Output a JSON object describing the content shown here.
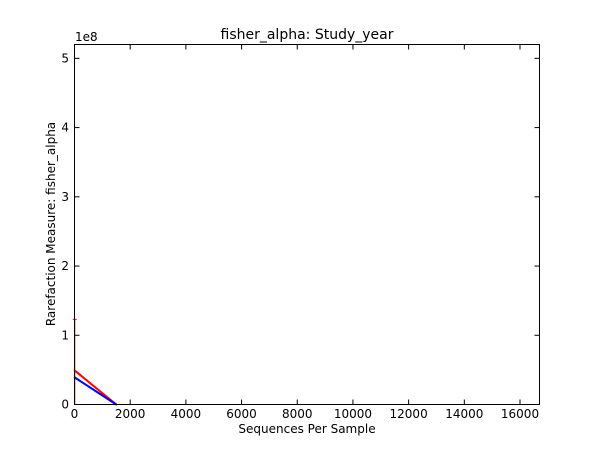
{
  "chart_data": {
    "type": "line",
    "title": "fisher_alpha: Study_year",
    "xlabel": "Sequences Per Sample",
    "ylabel": "Rarefaction Measure: fisher_alpha",
    "y_scale_label": "1e8",
    "xlim": [
      0,
      16700
    ],
    "ylim": [
      0,
      5.2
    ],
    "x_ticks": [
      0,
      2000,
      4000,
      6000,
      8000,
      10000,
      12000,
      14000,
      16000
    ],
    "y_ticks": [
      0,
      1,
      2,
      3,
      4,
      5
    ],
    "grid": false,
    "legend": "none",
    "series": [
      {
        "color": "#ff0000",
        "x": [
          10,
          1500
        ],
        "y": [
          0.49,
          0.0
        ],
        "error": [
          0.74,
          0.0
        ]
      },
      {
        "color": "#0000ff",
        "x": [
          10,
          1500
        ],
        "y": [
          0.39,
          0.0
        ],
        "error": [
          0.0,
          0.0
        ]
      }
    ]
  }
}
